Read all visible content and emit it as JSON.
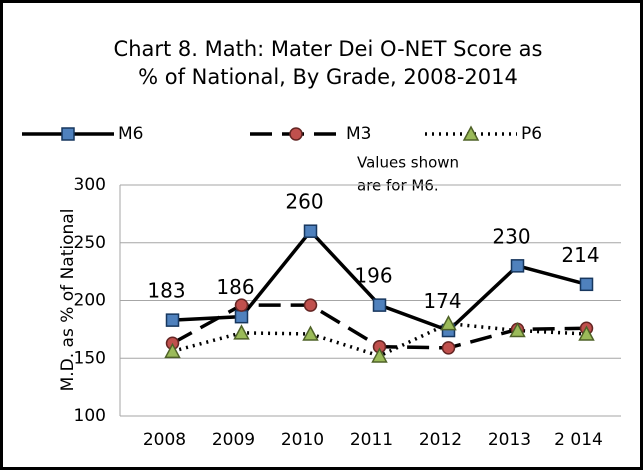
{
  "chart_data": {
    "type": "line",
    "title": [
      "Chart 8.  Math: Mater Dei O-NET Score as",
      "% of National, By Grade, 2008-2014"
    ],
    "y_label": "M.D. as % of National",
    "annotation": [
      "Values shown",
      "are for M6."
    ],
    "categories": [
      "2008",
      "2009",
      "2010",
      "2011",
      "2012",
      "2013",
      "2 014"
    ],
    "series": [
      {
        "name": "M6",
        "color": "#4f81bd",
        "dash": "solid",
        "marker": "square",
        "values": [
          183,
          186,
          260,
          196,
          174,
          230,
          214
        ]
      },
      {
        "name": "M3",
        "color": "#c0504d",
        "dash": "dashed",
        "marker": "circle",
        "values": [
          163,
          196,
          196,
          160,
          159,
          175,
          176
        ]
      },
      {
        "name": "P6",
        "color": "#9bbb59",
        "dash": "dotted",
        "marker": "triangle",
        "values": [
          156,
          172,
          171,
          152,
          180,
          174,
          171
        ]
      }
    ],
    "labeled_series": 0,
    "ylim": [
      100,
      300
    ],
    "yticks": [
      100,
      150,
      200,
      250,
      300
    ],
    "grid": true,
    "legend": "top"
  }
}
